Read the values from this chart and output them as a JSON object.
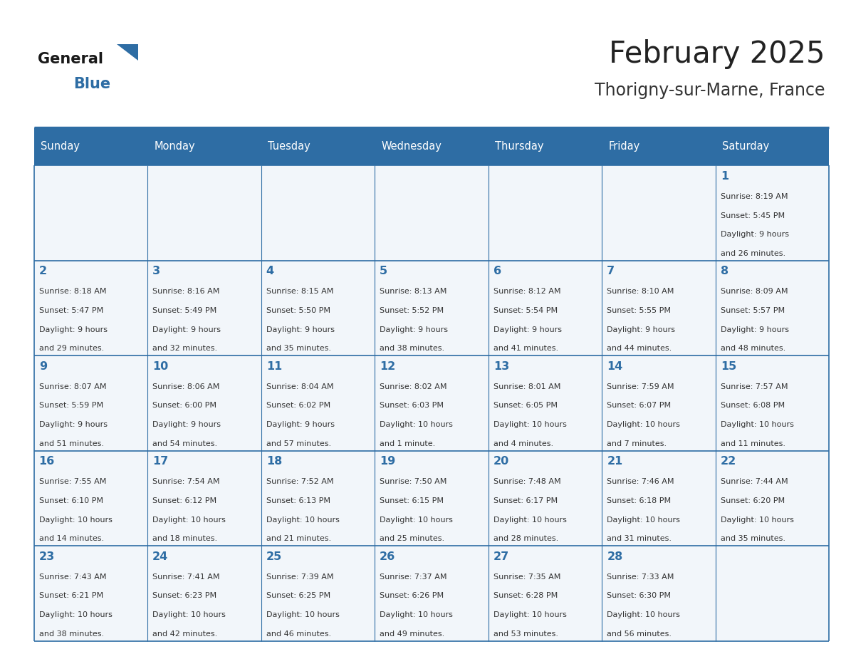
{
  "title": "February 2025",
  "subtitle": "Thorigny-sur-Marne, France",
  "header_bg_color": "#2E6DA4",
  "header_text_color": "#FFFFFF",
  "cell_bg_color": "#F2F6FA",
  "border_color": "#2E6DA4",
  "day_headers": [
    "Sunday",
    "Monday",
    "Tuesday",
    "Wednesday",
    "Thursday",
    "Friday",
    "Saturday"
  ],
  "title_color": "#222222",
  "subtitle_color": "#333333",
  "number_color": "#2E6DA4",
  "text_color": "#333333",
  "logo_general_color": "#1a1a1a",
  "logo_blue_color": "#2E6DA4",
  "weeks": [
    [
      null,
      null,
      null,
      null,
      null,
      null,
      {
        "day": 1,
        "sunrise": "8:19 AM",
        "sunset": "5:45 PM",
        "daylight_line1": "Daylight: 9 hours",
        "daylight_line2": "and 26 minutes."
      }
    ],
    [
      {
        "day": 2,
        "sunrise": "8:18 AM",
        "sunset": "5:47 PM",
        "daylight_line1": "Daylight: 9 hours",
        "daylight_line2": "and 29 minutes."
      },
      {
        "day": 3,
        "sunrise": "8:16 AM",
        "sunset": "5:49 PM",
        "daylight_line1": "Daylight: 9 hours",
        "daylight_line2": "and 32 minutes."
      },
      {
        "day": 4,
        "sunrise": "8:15 AM",
        "sunset": "5:50 PM",
        "daylight_line1": "Daylight: 9 hours",
        "daylight_line2": "and 35 minutes."
      },
      {
        "day": 5,
        "sunrise": "8:13 AM",
        "sunset": "5:52 PM",
        "daylight_line1": "Daylight: 9 hours",
        "daylight_line2": "and 38 minutes."
      },
      {
        "day": 6,
        "sunrise": "8:12 AM",
        "sunset": "5:54 PM",
        "daylight_line1": "Daylight: 9 hours",
        "daylight_line2": "and 41 minutes."
      },
      {
        "day": 7,
        "sunrise": "8:10 AM",
        "sunset": "5:55 PM",
        "daylight_line1": "Daylight: 9 hours",
        "daylight_line2": "and 44 minutes."
      },
      {
        "day": 8,
        "sunrise": "8:09 AM",
        "sunset": "5:57 PM",
        "daylight_line1": "Daylight: 9 hours",
        "daylight_line2": "and 48 minutes."
      }
    ],
    [
      {
        "day": 9,
        "sunrise": "8:07 AM",
        "sunset": "5:59 PM",
        "daylight_line1": "Daylight: 9 hours",
        "daylight_line2": "and 51 minutes."
      },
      {
        "day": 10,
        "sunrise": "8:06 AM",
        "sunset": "6:00 PM",
        "daylight_line1": "Daylight: 9 hours",
        "daylight_line2": "and 54 minutes."
      },
      {
        "day": 11,
        "sunrise": "8:04 AM",
        "sunset": "6:02 PM",
        "daylight_line1": "Daylight: 9 hours",
        "daylight_line2": "and 57 minutes."
      },
      {
        "day": 12,
        "sunrise": "8:02 AM",
        "sunset": "6:03 PM",
        "daylight_line1": "Daylight: 10 hours",
        "daylight_line2": "and 1 minute."
      },
      {
        "day": 13,
        "sunrise": "8:01 AM",
        "sunset": "6:05 PM",
        "daylight_line1": "Daylight: 10 hours",
        "daylight_line2": "and 4 minutes."
      },
      {
        "day": 14,
        "sunrise": "7:59 AM",
        "sunset": "6:07 PM",
        "daylight_line1": "Daylight: 10 hours",
        "daylight_line2": "and 7 minutes."
      },
      {
        "day": 15,
        "sunrise": "7:57 AM",
        "sunset": "6:08 PM",
        "daylight_line1": "Daylight: 10 hours",
        "daylight_line2": "and 11 minutes."
      }
    ],
    [
      {
        "day": 16,
        "sunrise": "7:55 AM",
        "sunset": "6:10 PM",
        "daylight_line1": "Daylight: 10 hours",
        "daylight_line2": "and 14 minutes."
      },
      {
        "day": 17,
        "sunrise": "7:54 AM",
        "sunset": "6:12 PM",
        "daylight_line1": "Daylight: 10 hours",
        "daylight_line2": "and 18 minutes."
      },
      {
        "day": 18,
        "sunrise": "7:52 AM",
        "sunset": "6:13 PM",
        "daylight_line1": "Daylight: 10 hours",
        "daylight_line2": "and 21 minutes."
      },
      {
        "day": 19,
        "sunrise": "7:50 AM",
        "sunset": "6:15 PM",
        "daylight_line1": "Daylight: 10 hours",
        "daylight_line2": "and 25 minutes."
      },
      {
        "day": 20,
        "sunrise": "7:48 AM",
        "sunset": "6:17 PM",
        "daylight_line1": "Daylight: 10 hours",
        "daylight_line2": "and 28 minutes."
      },
      {
        "day": 21,
        "sunrise": "7:46 AM",
        "sunset": "6:18 PM",
        "daylight_line1": "Daylight: 10 hours",
        "daylight_line2": "and 31 minutes."
      },
      {
        "day": 22,
        "sunrise": "7:44 AM",
        "sunset": "6:20 PM",
        "daylight_line1": "Daylight: 10 hours",
        "daylight_line2": "and 35 minutes."
      }
    ],
    [
      {
        "day": 23,
        "sunrise": "7:43 AM",
        "sunset": "6:21 PM",
        "daylight_line1": "Daylight: 10 hours",
        "daylight_line2": "and 38 minutes."
      },
      {
        "day": 24,
        "sunrise": "7:41 AM",
        "sunset": "6:23 PM",
        "daylight_line1": "Daylight: 10 hours",
        "daylight_line2": "and 42 minutes."
      },
      {
        "day": 25,
        "sunrise": "7:39 AM",
        "sunset": "6:25 PM",
        "daylight_line1": "Daylight: 10 hours",
        "daylight_line2": "and 46 minutes."
      },
      {
        "day": 26,
        "sunrise": "7:37 AM",
        "sunset": "6:26 PM",
        "daylight_line1": "Daylight: 10 hours",
        "daylight_line2": "and 49 minutes."
      },
      {
        "day": 27,
        "sunrise": "7:35 AM",
        "sunset": "6:28 PM",
        "daylight_line1": "Daylight: 10 hours",
        "daylight_line2": "and 53 minutes."
      },
      {
        "day": 28,
        "sunrise": "7:33 AM",
        "sunset": "6:30 PM",
        "daylight_line1": "Daylight: 10 hours",
        "daylight_line2": "and 56 minutes."
      },
      null
    ]
  ]
}
